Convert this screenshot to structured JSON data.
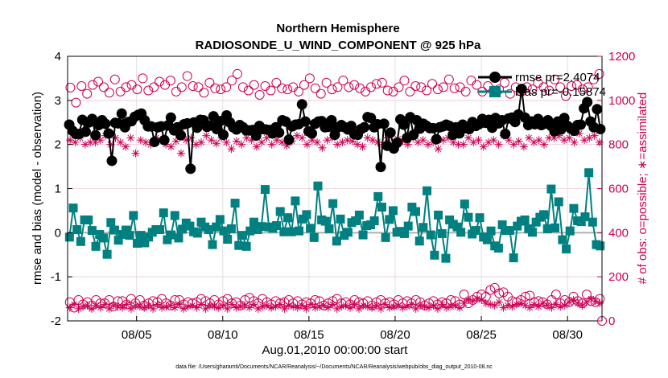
{
  "chart_data": {
    "type": "line",
    "title": "Northern Hemisphere",
    "subtitle": "RADIOSONDE_U_WIND_COMPONENT @ 925 hPa",
    "xlabel": "Aug.01,2010 00:00:00 start",
    "ylabel_left": "rmse and bias (model - observation)",
    "ylabel_right": "# of obs: o=possible; ∗=assimilated",
    "xlim": [
      1,
      32
    ],
    "ylim_left": [
      -2,
      4
    ],
    "ylim_right": [
      0,
      1200
    ],
    "xticks": [
      5,
      10,
      15,
      20,
      25,
      30
    ],
    "xtick_labels": [
      "08/05",
      "08/10",
      "08/15",
      "08/20",
      "08/25",
      "08/30"
    ],
    "yticks_left": [
      -2,
      -1,
      0,
      1,
      2,
      3,
      4
    ],
    "yticks_right": [
      0,
      200,
      400,
      600,
      800,
      1000,
      1200
    ],
    "footer": "data file: /Users/gharamti/Documents/NCAR/Reanalysis/~/Documents/NCAR/Reanalysis/webpub/obs_diag_output_2010-08.nc",
    "legend": {
      "rmse_label": "rmse pr=2.4074",
      "bias_label": "bias pr=-0.15874"
    },
    "colors": {
      "rmse": "#000000",
      "bias": "#008080",
      "obs": "#cc0055",
      "grid": "#e0e0e0",
      "zero_line": "#b0b0b0"
    },
    "rmse": [
      2.45,
      2.31,
      2.24,
      2.24,
      2.56,
      2.29,
      2.5,
      2.58,
      2.21,
      2.44,
      2.55,
      2.47,
      2.25,
      1.63,
      2.49,
      2.48,
      2.7,
      2.39,
      2.51,
      2.53,
      2.63,
      2.67,
      2.7,
      2.55,
      2.41,
      2.41,
      2.06,
      2.39,
      2.41,
      2.1,
      2.43,
      2.61,
      2.32,
      2.39,
      2.21,
      2.46,
      2.48,
      1.45,
      2.5,
      2.38,
      2.56,
      2.55,
      2.4,
      2.43,
      2.64,
      2.35,
      2.53,
      2.22,
      2.66,
      2.5,
      2.39,
      2.34,
      2.44,
      2.39,
      2.32,
      2.32,
      2.33,
      2.2,
      2.42,
      2.35,
      2.34,
      2.33,
      2.25,
      2.39,
      2.27,
      2.55,
      2.52,
      2.11,
      2.41,
      2.45,
      2.46,
      2.91,
      2.52,
      2.3,
      2.25,
      2.47,
      2.52,
      2.53,
      2.39,
      2.4,
      2.55,
      2.22,
      2.39,
      2.44,
      2.39,
      2.34,
      2.42,
      2.23,
      2.22,
      2.35,
      2.39,
      2.62,
      2.6,
      2.39,
      2.46,
      1.49,
      2.47,
      1.97,
      2.27,
      1.91,
      2.04,
      2.57,
      2.45,
      2.15,
      2.62,
      2.22,
      2.55,
      2.36,
      2.47,
      2.42,
      2.37,
      2.37,
      2.12,
      2.39,
      2.41,
      2.45,
      2.42,
      2.22,
      2.39,
      2.25,
      2.45,
      2.37,
      2.35,
      2.51,
      2.42,
      2.46,
      2.58,
      2.49,
      2.56,
      2.38,
      2.6,
      2.48,
      2.55,
      2.24,
      2.59,
      2.61,
      2.51,
      2.68,
      3.26,
      2.61,
      2.44,
      2.52,
      2.46,
      2.58,
      2.44,
      2.47,
      2.55,
      2.42,
      2.3,
      2.52,
      2.34,
      2.6,
      2.42,
      2.36,
      2.31,
      2.44,
      2.45,
      2.82,
      2.96,
      2.52,
      2.39,
      2.8,
      2.35
    ],
    "bias": [
      -0.1,
      0.56,
      0.07,
      -0.2,
      0.29,
      0.29,
      0.05,
      -0.31,
      -0.04,
      -0.12,
      -0.49,
      0.23,
      0.06,
      -0.17,
      -0.04,
      0.06,
      -0.06,
      0.39,
      -0.24,
      -0.06,
      -0.23,
      -0.1,
      0.01,
      0.07,
      0.07,
      0.45,
      -0.16,
      -0.05,
      0.39,
      -0.12,
      0.08,
      0.22,
      0.15,
      0.02,
      -0.01,
      0.24,
      0.13,
      0.07,
      -0.27,
      0.13,
      0.3,
      0.04,
      -0.15,
      0.09,
      0.67,
      -0.29,
      -0.06,
      -0.31,
      0.04,
      0.24,
      0.07,
      0.14,
      0.98,
      0.13,
      0.1,
      0.16,
      0.48,
      0.02,
      0.34,
      0.02,
      0.72,
      0.04,
      0.31,
      0.41,
      0.1,
      -0.11,
      1.06,
      0.29,
      0.26,
      0.09,
      0.66,
      -0.19,
      0.31,
      -0.06,
      0.01,
      0.23,
      0.27,
      0.4,
      -0.05,
      0.16,
      0.18,
      0.27,
      0.82,
      0.58,
      -0.11,
      0.3,
      0.5,
      0.01,
      0.03,
      -0.02,
      0.15,
      0.58,
      0.48,
      -0.19,
      0.12,
      0.95,
      -0.05,
      -0.51,
      0.4,
      -0.02,
      -0.58,
      0.29,
      0.19,
      0.13,
      0.01,
      0.65,
      0.35,
      -0.03,
      0.05,
      0.34,
      -0.1,
      -0.16,
      0.04,
      -0.3,
      -0.35,
      0.18,
      0.05,
      0.05,
      -0.57,
      0.15,
      0.26,
      0.29,
      0.09,
      0.01,
      0.24,
      0.35,
      0.41,
      0.09,
      0.99,
      0.11,
      0.7,
      -0.16,
      -0.37,
      0.04,
      0.55,
      0.27,
      0.25,
      0.36,
      1.36,
      0.24,
      -0.27,
      -0.3
    ],
    "obs_possible": [
      1058,
      990,
      1065,
      1030,
      1070,
      1085,
      1060,
      1035,
      1095,
      1040,
      1060,
      1070,
      1050,
      1100,
      1045,
      1060,
      1085,
      1070,
      1090,
      1040,
      1060,
      1110,
      1065,
      1060,
      1035,
      1080,
      1055,
      1050,
      1060,
      1090,
      1120,
      1060,
      1045,
      1070,
      1025,
      1065,
      1045,
      1080,
      1055,
      1050,
      1060,
      1040,
      1070,
      1100,
      1055,
      1030,
      1080,
      1050,
      1060,
      1090,
      1060,
      1070,
      1055,
      1040,
      1060,
      1075,
      1080,
      1045,
      1040,
      1060,
      1090,
      1040,
      1065,
      1060,
      1045,
      1075,
      1050,
      1060,
      1095,
      1055,
      1060,
      1040,
      1090,
      1070,
      1040,
      1065,
      1045,
      1050,
      1080,
      1030,
      1060,
      1040,
      1060,
      1050,
      1080,
      1060,
      1045,
      1095,
      1060,
      1020,
      1065,
      1070,
      1050,
      1060,
      1095,
      1120
    ],
    "obs_assim": [
      820,
      810,
      830,
      800,
      810,
      810,
      820,
      840,
      800,
      830,
      810,
      790,
      830,
      760,
      820,
      810,
      800,
      830,
      820,
      800,
      790,
      815,
      760,
      820,
      830,
      800,
      810,
      840,
      820,
      805,
      830,
      810,
      780,
      815,
      800,
      830,
      820,
      790,
      810,
      830,
      800,
      820,
      810,
      795,
      815,
      840,
      830,
      800,
      820,
      810,
      785,
      820,
      830,
      800,
      810,
      820,
      815,
      800,
      790,
      830,
      820,
      810,
      800,
      830,
      785,
      825,
      815,
      800,
      830,
      810,
      820,
      800,
      810,
      780,
      820,
      830,
      810,
      800,
      800,
      830,
      810,
      820,
      790,
      810,
      820,
      800,
      840,
      820,
      800,
      815,
      790,
      830,
      810,
      820,
      800,
      830,
      830,
      840,
      820,
      830,
      810,
      850,
      820,
      830,
      840,
      810
    ],
    "obs_possible_low": [
      85,
      60,
      95,
      75,
      85,
      70,
      95,
      80,
      80,
      95,
      65,
      90,
      90,
      75,
      100,
      80,
      95,
      70,
      80,
      90,
      85,
      100,
      80,
      70,
      95,
      95,
      75,
      85,
      80,
      85,
      100,
      90,
      80,
      95,
      75,
      90,
      100,
      80,
      85,
      70,
      95,
      105,
      90,
      80,
      100,
      85,
      75,
      90,
      80,
      85,
      95,
      80,
      90,
      75,
      85,
      80,
      95,
      90,
      70,
      80,
      90,
      100,
      80,
      85,
      75,
      95,
      85,
      80,
      90,
      70,
      85,
      95,
      80,
      85,
      75,
      95,
      80,
      90,
      80,
      95,
      85,
      70,
      80,
      90,
      75,
      85,
      80,
      95,
      90,
      75,
      120,
      80,
      95,
      110,
      120,
      110,
      140,
      150,
      125,
      130,
      110,
      90,
      85,
      95,
      110,
      115,
      85,
      90,
      85,
      75,
      95,
      120,
      80,
      95,
      85,
      110,
      90,
      80,
      120,
      90,
      85,
      100
    ],
    "obs_assim_low": [
      60,
      75,
      55,
      65,
      70,
      55,
      70,
      60,
      75,
      55,
      70,
      65,
      60,
      75,
      55,
      70,
      65,
      60,
      70,
      55,
      75,
      60,
      65,
      70,
      60,
      75,
      55,
      65,
      70,
      60,
      75,
      55,
      70,
      65,
      60,
      70,
      55,
      75,
      60,
      65,
      70,
      60,
      75,
      55,
      65,
      70,
      60,
      65,
      75,
      55,
      70,
      65,
      60,
      70,
      55,
      75,
      60,
      65,
      70,
      60,
      75,
      55,
      65,
      70,
      60,
      75,
      55,
      70,
      65,
      60,
      70,
      55,
      75,
      60,
      65,
      70,
      60,
      65,
      75,
      55,
      70,
      65,
      60,
      70,
      55,
      75,
      60,
      65,
      70,
      60,
      80,
      95,
      90,
      100,
      95,
      80,
      75,
      70,
      85,
      60,
      70,
      65,
      75,
      80,
      70,
      60,
      75,
      65,
      80,
      70,
      60,
      75,
      65,
      70,
      85,
      95,
      80,
      70,
      85,
      100,
      90,
      80
    ]
  }
}
